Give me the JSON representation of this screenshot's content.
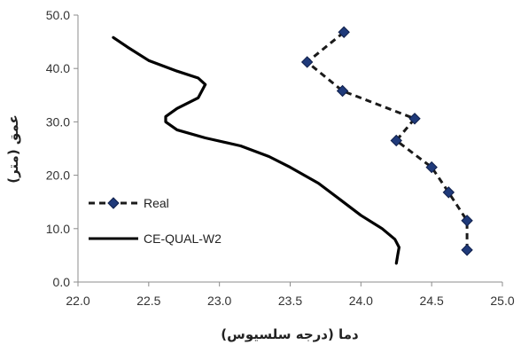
{
  "chart_data": {
    "type": "line",
    "xlabel": "دما (درجه سلسیوس)",
    "ylabel": "عمق (متر)",
    "xlim": [
      22.0,
      25.0
    ],
    "ylim": [
      0.0,
      50.0
    ],
    "x_ticks": [
      "22.0",
      "22.5",
      "23.0",
      "23.5",
      "24.0",
      "24.5",
      "25.0"
    ],
    "y_ticks": [
      "0.0",
      "10.0",
      "20.0",
      "30.0",
      "40.0",
      "50.0"
    ],
    "grid": false,
    "legend_position": "left-center",
    "series": [
      {
        "name": "Real",
        "style": "dashed",
        "marker": "diamond",
        "color": "#1a1a1a",
        "marker_color": "#1f3a7a",
        "points": [
          {
            "x": 24.75,
            "y": 6.0
          },
          {
            "x": 24.75,
            "y": 11.5
          },
          {
            "x": 24.62,
            "y": 16.8
          },
          {
            "x": 24.5,
            "y": 21.5
          },
          {
            "x": 24.25,
            "y": 26.5
          },
          {
            "x": 24.38,
            "y": 30.6
          },
          {
            "x": 23.87,
            "y": 35.8
          },
          {
            "x": 23.62,
            "y": 41.2
          },
          {
            "x": 23.88,
            "y": 46.8
          }
        ]
      },
      {
        "name": "CE-QUAL-W2",
        "style": "solid",
        "marker": "none",
        "color": "#000000",
        "points": [
          {
            "x": 24.25,
            "y": 3.5
          },
          {
            "x": 24.26,
            "y": 5.0
          },
          {
            "x": 24.27,
            "y": 6.5
          },
          {
            "x": 24.24,
            "y": 8.0
          },
          {
            "x": 24.15,
            "y": 10.0
          },
          {
            "x": 24.0,
            "y": 12.5
          },
          {
            "x": 23.85,
            "y": 15.5
          },
          {
            "x": 23.7,
            "y": 18.5
          },
          {
            "x": 23.5,
            "y": 21.5
          },
          {
            "x": 23.35,
            "y": 23.5
          },
          {
            "x": 23.15,
            "y": 25.5
          },
          {
            "x": 22.9,
            "y": 27.0
          },
          {
            "x": 22.7,
            "y": 28.5
          },
          {
            "x": 22.62,
            "y": 30.0
          },
          {
            "x": 22.62,
            "y": 31.0
          },
          {
            "x": 22.7,
            "y": 32.5
          },
          {
            "x": 22.85,
            "y": 34.5
          },
          {
            "x": 22.9,
            "y": 37.0
          },
          {
            "x": 22.85,
            "y": 38.2
          },
          {
            "x": 22.7,
            "y": 39.5
          },
          {
            "x": 22.5,
            "y": 41.5
          },
          {
            "x": 22.35,
            "y": 44.0
          },
          {
            "x": 22.25,
            "y": 45.8
          }
        ]
      }
    ]
  }
}
